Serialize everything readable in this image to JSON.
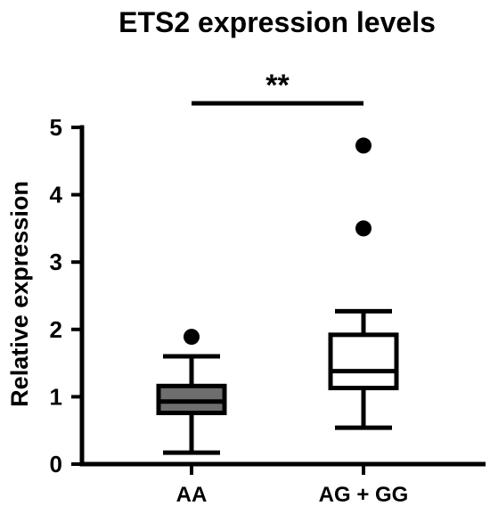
{
  "chart_data": {
    "type": "box",
    "title": "ETS2 expression levels",
    "xlabel": "",
    "ylabel": "Relative expression",
    "ylim": [
      0,
      5
    ],
    "yticks": [
      0,
      1,
      2,
      3,
      4,
      5
    ],
    "categories": [
      "AA",
      "AG + GG"
    ],
    "grid": false,
    "legend": "none",
    "boxes": [
      {
        "category": "AA",
        "whisker_low": 0.17,
        "q1": 0.76,
        "median": 0.93,
        "q3": 1.16,
        "whisker_high": 1.6,
        "outliers": [
          1.89
        ],
        "fill": "#6e6e6e"
      },
      {
        "category": "AG + GG",
        "whisker_low": 0.54,
        "q1": 1.13,
        "median": 1.38,
        "q3": 1.92,
        "whisker_high": 2.27,
        "outliers": [
          3.5,
          4.73
        ],
        "fill": "#ffffff"
      }
    ],
    "significance": {
      "label": "**",
      "between": [
        "AA",
        "AG + GG"
      ]
    }
  }
}
